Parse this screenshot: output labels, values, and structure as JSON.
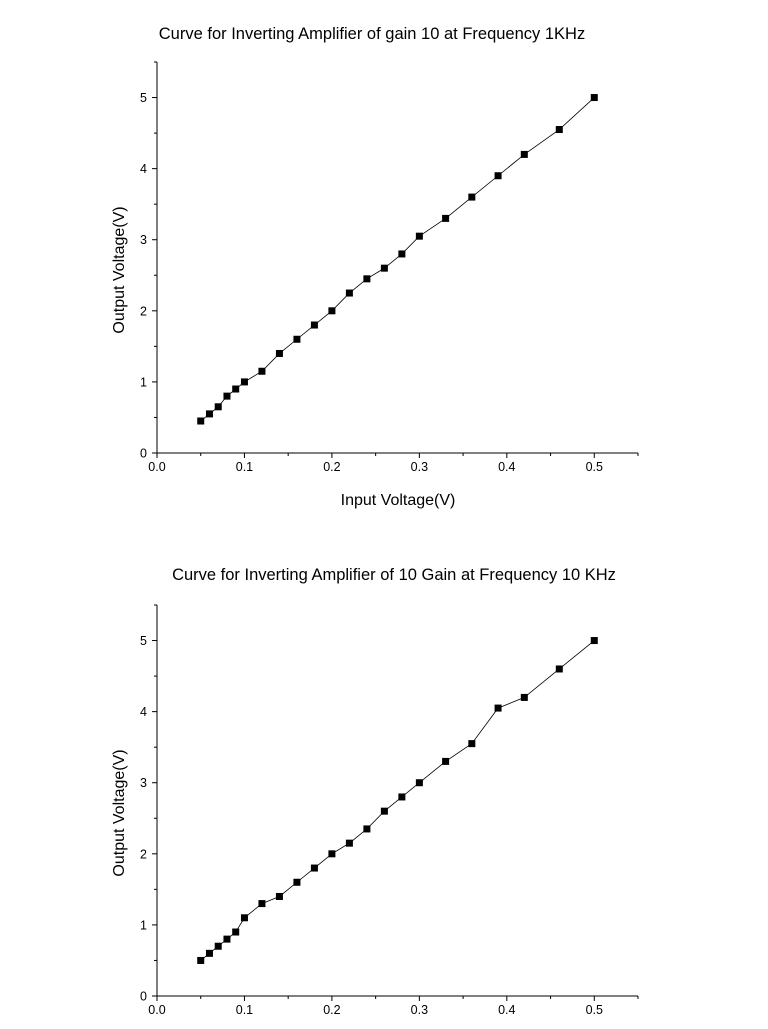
{
  "chart_data": [
    {
      "type": "line",
      "title": "Curve for Inverting Amplifier of gain 10 at Frequency 1KHz",
      "xlabel": "Input Voltage(V)",
      "ylabel": "Output Voltage(V)",
      "xlim": [
        0,
        0.55
      ],
      "ylim": [
        0,
        5.5
      ],
      "xticks": [
        0.0,
        0.1,
        0.2,
        0.3,
        0.4,
        0.5
      ],
      "xtick_labels": [
        "0.0",
        "0.1",
        "0.2",
        "0.3",
        "0.4",
        "0.5"
      ],
      "yticks": [
        0,
        1,
        2,
        3,
        4,
        5
      ],
      "ytick_labels": [
        "0",
        "1",
        "2",
        "3",
        "4",
        "5"
      ],
      "marker": "square",
      "series": [
        {
          "name": "Output Voltage",
          "x": [
            0.05,
            0.06,
            0.07,
            0.08,
            0.09,
            0.1,
            0.12,
            0.14,
            0.16,
            0.18,
            0.2,
            0.22,
            0.24,
            0.26,
            0.28,
            0.3,
            0.33,
            0.36,
            0.39,
            0.42,
            0.46,
            0.5
          ],
          "y": [
            0.45,
            0.55,
            0.65,
            0.8,
            0.9,
            1.0,
            1.15,
            1.4,
            1.6,
            1.8,
            2.0,
            2.25,
            2.45,
            2.6,
            2.8,
            3.05,
            3.3,
            3.6,
            3.9,
            4.2,
            4.55,
            5.0
          ]
        }
      ]
    },
    {
      "type": "line",
      "title": "Curve for Inverting Amplifier of 10 Gain at Frequency 10 KHz",
      "xlabel": "",
      "ylabel": "Output Voltage(V)",
      "xlim": [
        0,
        0.55
      ],
      "ylim": [
        0,
        5.5
      ],
      "xticks": [
        0.0,
        0.1,
        0.2,
        0.3,
        0.4,
        0.5
      ],
      "xtick_labels": [
        "0.0",
        "0.1",
        "0.2",
        "0.3",
        "0.4",
        "0.5"
      ],
      "yticks": [
        0,
        1,
        2,
        3,
        4,
        5
      ],
      "ytick_labels": [
        "0",
        "1",
        "2",
        "3",
        "4",
        "5"
      ],
      "marker": "square",
      "series": [
        {
          "name": "Output Voltage",
          "x": [
            0.05,
            0.06,
            0.07,
            0.08,
            0.09,
            0.1,
            0.12,
            0.14,
            0.16,
            0.18,
            0.2,
            0.22,
            0.24,
            0.26,
            0.28,
            0.3,
            0.33,
            0.36,
            0.39,
            0.42,
            0.46,
            0.5
          ],
          "y": [
            0.5,
            0.6,
            0.7,
            0.8,
            0.9,
            1.1,
            1.3,
            1.4,
            1.6,
            1.8,
            2.0,
            2.15,
            2.35,
            2.6,
            2.8,
            3.0,
            3.3,
            3.55,
            4.05,
            4.2,
            4.6,
            5.0
          ]
        }
      ]
    }
  ]
}
